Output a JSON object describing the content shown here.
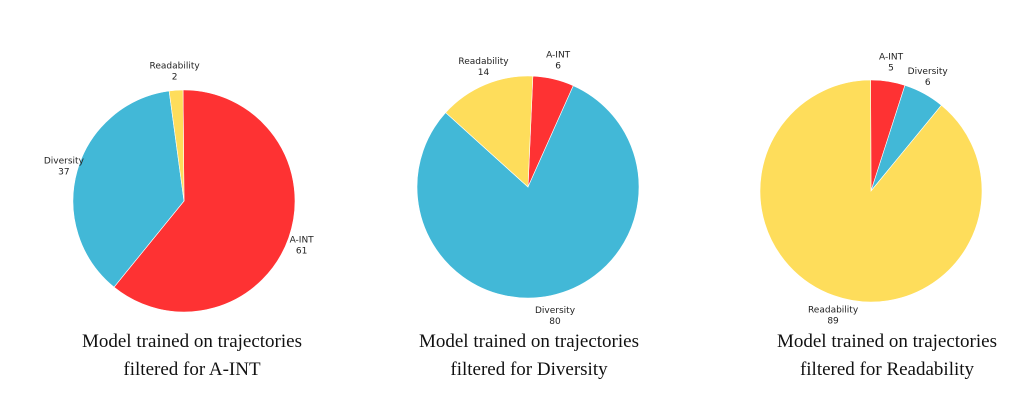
{
  "colors": {
    "A-INT": "#fe3233",
    "Diversity": "#42b8d7",
    "Readability": "#fedd5b"
  },
  "chart_data": [
    {
      "type": "pie",
      "caption": [
        "Model trained on trajectories",
        "filtered for A-INT"
      ],
      "slices": [
        {
          "label": "A-INT",
          "value": 61
        },
        {
          "label": "Diversity",
          "value": 37
        },
        {
          "label": "Readability",
          "value": 2
        }
      ]
    },
    {
      "type": "pie",
      "caption": [
        "Model trained on trajectories",
        "filtered for Diversity"
      ],
      "slices": [
        {
          "label": "A-INT",
          "value": 6
        },
        {
          "label": "Diversity",
          "value": 80
        },
        {
          "label": "Readability",
          "value": 14
        }
      ]
    },
    {
      "type": "pie",
      "caption": [
        "Model trained on trajectories",
        "filtered for Readability"
      ],
      "slices": [
        {
          "label": "A-INT",
          "value": 5
        },
        {
          "label": "Diversity",
          "value": 6
        },
        {
          "label": "Readability",
          "value": 89
        }
      ]
    }
  ]
}
